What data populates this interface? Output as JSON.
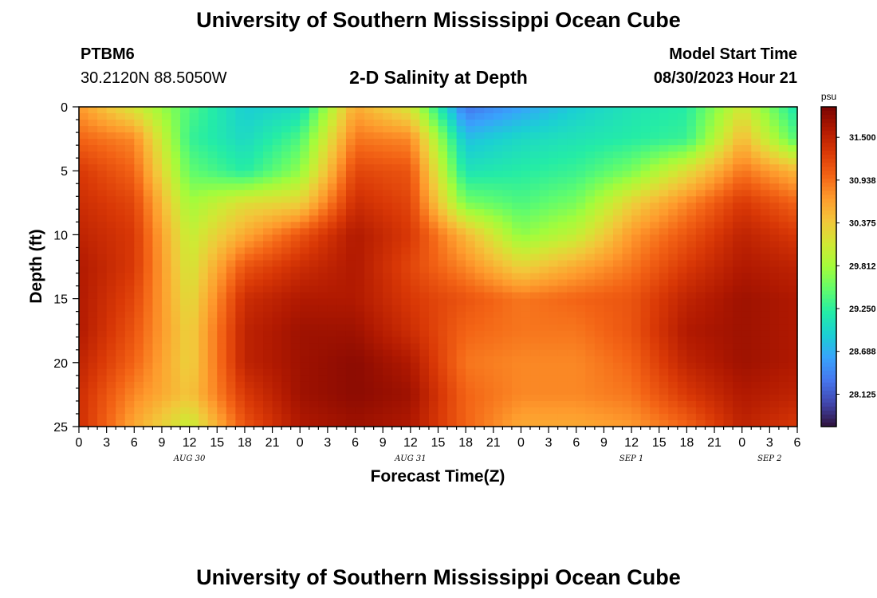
{
  "header": {
    "title": "University of Southern Mississippi Ocean Cube",
    "station_id": "PTBM6",
    "station_coords": "30.2120N  88.5050W",
    "plot_title": "2-D Salinity at Depth",
    "model_start_label": "Model Start Time",
    "model_start_value": "08/30/2023 Hour 21"
  },
  "footer": {
    "title_repeat": "University of Southern Mississippi Ocean Cube"
  },
  "chart_data": {
    "type": "heatmap",
    "title": "2-D Salinity at Depth",
    "xlabel": "Forecast Time(Z)",
    "ylabel": "Depth (ft)",
    "x_start": "08/30/2023 Hour 0",
    "x_step_hours": 1,
    "x_ticks": [
      "0",
      "3",
      "6",
      "9",
      "12",
      "15",
      "18",
      "21",
      "0",
      "3",
      "6",
      "9",
      "12",
      "15",
      "18",
      "21",
      "0",
      "3",
      "6",
      "9",
      "12",
      "15",
      "18",
      "21",
      "0",
      "3",
      "6"
    ],
    "date_labels": [
      {
        "label": "AUG 30",
        "hour": 12
      },
      {
        "label": "AUG 31",
        "hour": 36
      },
      {
        "label": "SEP 1",
        "hour": 60
      },
      {
        "label": "SEP 2",
        "hour": 75
      }
    ],
    "y_ticks": [
      0,
      5,
      10,
      15,
      20,
      25
    ],
    "ylim": [
      0,
      25
    ],
    "y_inverted": true,
    "colorbar": {
      "unit": "psu",
      "ticks": [
        "31.500",
        "30.938",
        "30.375",
        "29.812",
        "29.250",
        "28.688",
        "28.125"
      ],
      "range": [
        27.7,
        31.9
      ],
      "colors": [
        "#30123b",
        "#4145ab",
        "#4675ed",
        "#39a2fc",
        "#1bcfd4",
        "#24eca6",
        "#61fc6c",
        "#a4fc3b",
        "#d1e834",
        "#f3c63a",
        "#fe9b2d",
        "#f36315",
        "#d93806",
        "#b11901",
        "#7a0402"
      ]
    },
    "depth_rows_ft": [
      0,
      2.5,
      5,
      7.5,
      10,
      12.5,
      15,
      17.5,
      20,
      22.5,
      25
    ],
    "time_cols_hours": [
      0,
      6,
      12,
      18,
      24,
      30,
      36,
      42,
      48,
      54,
      60,
      66,
      72,
      78
    ],
    "values": [
      [
        30.7,
        30.1,
        29.4,
        28.9,
        29.0,
        30.6,
        30.1,
        28.3,
        28.6,
        28.9,
        29.1,
        29.2,
        30.1,
        29.1
      ],
      [
        31.0,
        30.8,
        29.3,
        29.0,
        29.4,
        30.9,
        30.8,
        28.8,
        29.0,
        29.1,
        29.2,
        29.3,
        30.5,
        29.4
      ],
      [
        31.3,
        31.0,
        29.5,
        29.2,
        29.7,
        31.2,
        31.1,
        29.1,
        29.2,
        29.3,
        29.6,
        30.2,
        30.9,
        30.5
      ],
      [
        31.4,
        31.2,
        29.8,
        30.2,
        30.3,
        31.4,
        31.2,
        29.6,
        29.4,
        29.6,
        30.3,
        30.8,
        31.3,
        31.0
      ],
      [
        31.5,
        31.3,
        30.0,
        30.6,
        31.1,
        31.6,
        31.3,
        30.5,
        29.7,
        30.0,
        30.7,
        31.1,
        31.5,
        31.3
      ],
      [
        31.6,
        31.3,
        30.1,
        31.1,
        31.4,
        31.6,
        31.2,
        30.8,
        30.3,
        30.6,
        30.9,
        31.3,
        31.6,
        31.5
      ],
      [
        31.6,
        31.2,
        30.2,
        31.4,
        31.6,
        31.6,
        31.3,
        31.1,
        30.9,
        31.0,
        31.1,
        31.5,
        31.7,
        31.6
      ],
      [
        31.6,
        31.1,
        30.3,
        31.5,
        31.7,
        31.7,
        31.4,
        31.0,
        30.9,
        30.9,
        31.1,
        31.6,
        31.7,
        31.6
      ],
      [
        31.5,
        31.0,
        30.3,
        31.5,
        31.7,
        31.8,
        31.6,
        30.9,
        30.8,
        30.8,
        31.0,
        31.5,
        31.7,
        31.6
      ],
      [
        31.4,
        30.8,
        30.4,
        31.3,
        31.7,
        31.8,
        31.7,
        31.0,
        30.8,
        30.8,
        30.9,
        31.3,
        31.6,
        31.5
      ],
      [
        31.4,
        30.6,
        30.0,
        31.1,
        31.6,
        31.7,
        31.6,
        31.0,
        30.6,
        30.6,
        30.7,
        31.0,
        31.5,
        31.3
      ]
    ]
  }
}
